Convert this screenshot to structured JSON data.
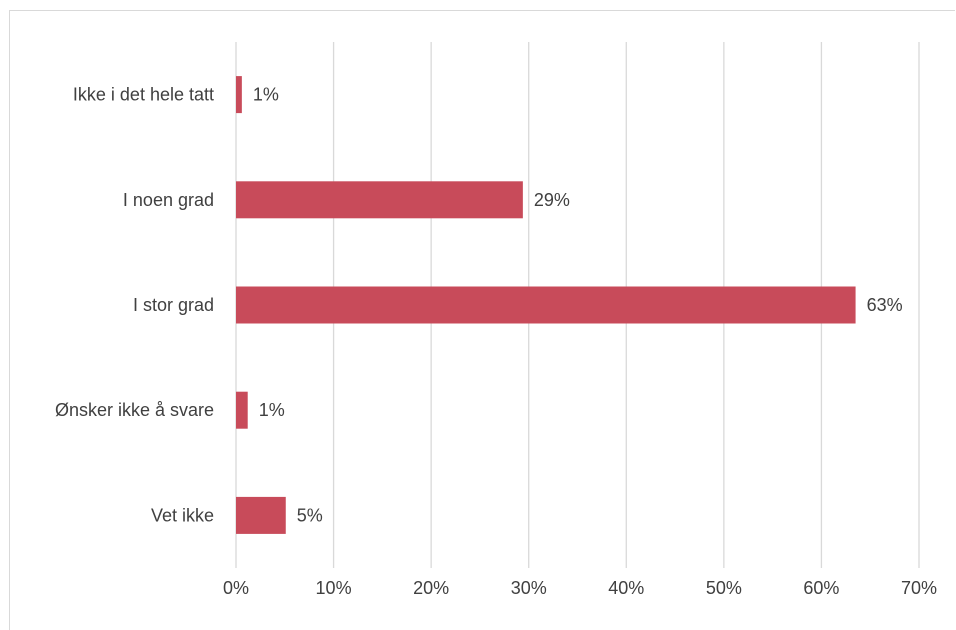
{
  "chart_data": {
    "type": "bar",
    "orientation": "horizontal",
    "categories": [
      "Ikke i det hele tatt",
      "I noen grad",
      "I stor grad",
      "Ønsker ikke å svare",
      "Vet ikke"
    ],
    "values": [
      0.6,
      29.4,
      63.5,
      1.2,
      5.1
    ],
    "data_labels": [
      "1%",
      "29%",
      "63%",
      "1%",
      "5%"
    ],
    "xlim": [
      0,
      70
    ],
    "x_ticks": [
      "0%",
      "10%",
      "20%",
      "30%",
      "40%",
      "50%",
      "60%",
      "70%"
    ],
    "title": "",
    "xlabel": "",
    "ylabel": "",
    "grid": "vertical",
    "legend": "none",
    "bar_color": "#c84b5a",
    "grid_color": "#d9d9d9"
  }
}
